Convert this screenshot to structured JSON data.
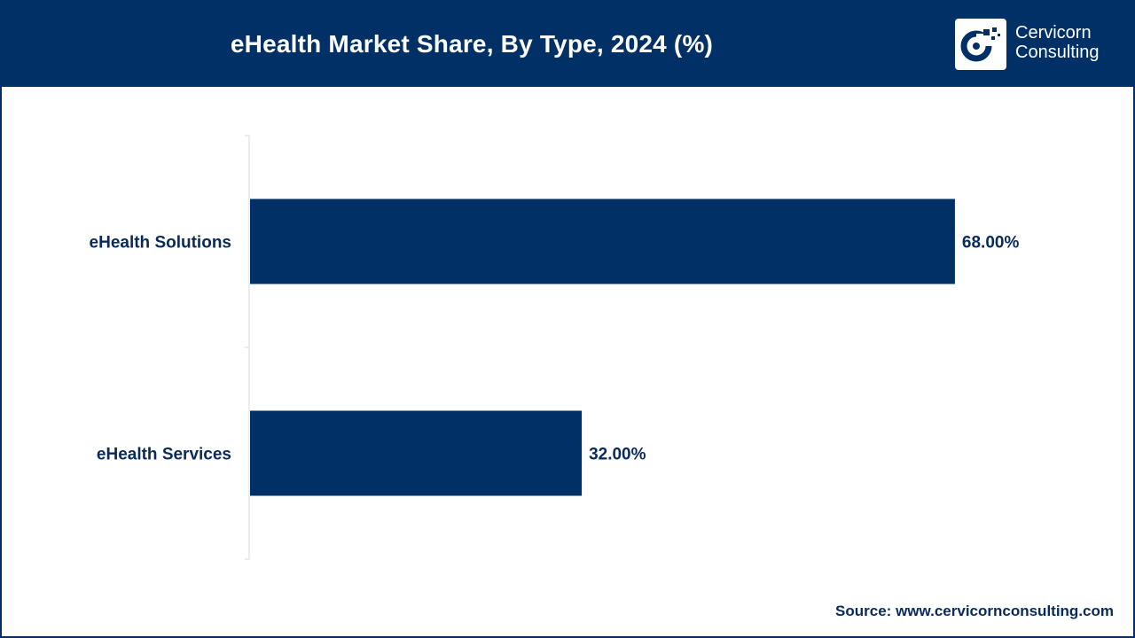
{
  "header": {
    "title": "eHealth Market Share, By Type, 2024 (%)",
    "logo_line1": "Cervicorn",
    "logo_line2": "Consulting"
  },
  "footer": {
    "source_label": "Source:",
    "source_url": "www.cervicornconsulting.com"
  },
  "colors": {
    "header_bg": "#003066",
    "bar": "#003066",
    "label_text": "#0a2a5c"
  },
  "chart_data": {
    "type": "bar",
    "orientation": "horizontal",
    "title": "eHealth Market Share, By Type, 2024 (%)",
    "categories": [
      "eHealth Solutions",
      "eHealth Services"
    ],
    "values": [
      68.0,
      32.0
    ],
    "value_labels": [
      "68.00%",
      "32.00%"
    ],
    "xlim": [
      0,
      100
    ],
    "grid": false,
    "legend": "none"
  }
}
